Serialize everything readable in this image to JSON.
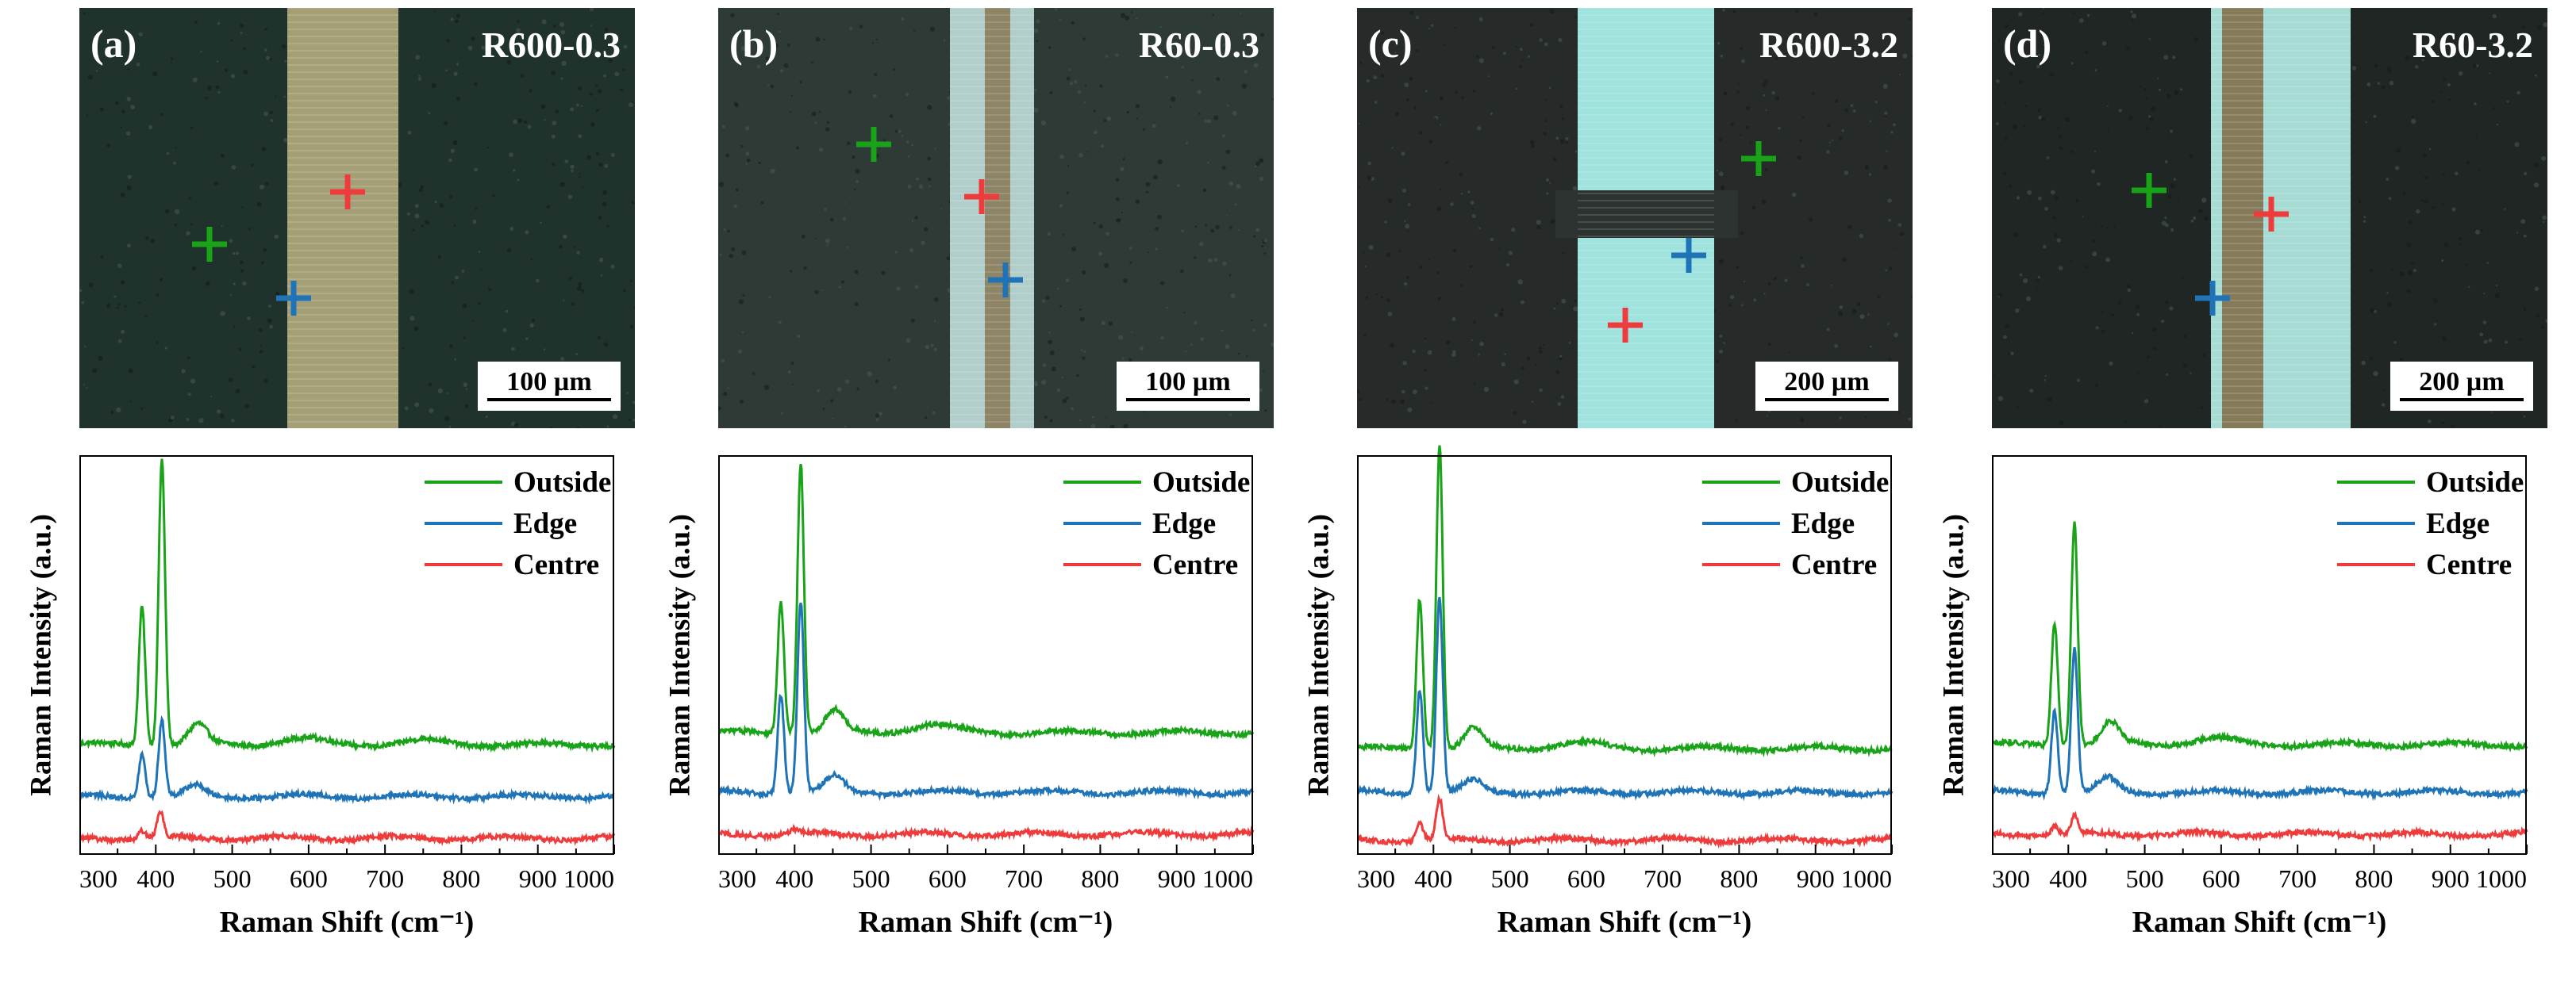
{
  "figure": {
    "panels": [
      {
        "letter": "(a)",
        "sample": "R600-0.3",
        "scale_bar": "100 µm",
        "style": "a"
      },
      {
        "letter": "(b)",
        "sample": "R60-0.3",
        "scale_bar": "100 µm",
        "style": "b"
      },
      {
        "letter": "(c)",
        "sample": "R600-3.2",
        "scale_bar": "200 µm",
        "style": "c"
      },
      {
        "letter": "(d)",
        "sample": "R60-3.2",
        "scale_bar": "200 µm",
        "style": "d"
      }
    ],
    "colors": {
      "outside": "#19a319",
      "edge": "#1f73b7",
      "centre": "#ee3b3b",
      "axis": "#000000"
    }
  },
  "chart_data": [
    {
      "type": "line",
      "panel": "(a)",
      "title": "",
      "xlabel": "Raman Shift (cm⁻¹)",
      "ylabel": "Raman Intensity (a.u.)",
      "xlim": [
        300,
        1000
      ],
      "ylim": [
        0,
        10
      ],
      "xticks": [
        300,
        400,
        500,
        600,
        700,
        800,
        900,
        1000
      ],
      "yticks": [],
      "legend": "top-right",
      "series": [
        {
          "name": "Outside",
          "color": "#19a319",
          "baseline": 2.75,
          "peaks": [
            [
              382,
              3.5
            ],
            [
              408,
              7.2
            ],
            [
              455,
              0.5
            ],
            [
              590,
              0.15
            ],
            [
              750,
              0.1
            ]
          ]
        },
        {
          "name": "Edge",
          "color": "#1f73b7",
          "baseline": 1.45,
          "peaks": [
            [
              382,
              1.1
            ],
            [
              408,
              1.9
            ],
            [
              452,
              0.25
            ]
          ]
        },
        {
          "name": "Centre",
          "color": "#ee3b3b",
          "baseline": 0.4,
          "peaks": [
            [
              382,
              0.2
            ],
            [
              406,
              0.65
            ]
          ]
        }
      ]
    },
    {
      "type": "line",
      "panel": "(b)",
      "title": "",
      "xlabel": "Raman Shift (cm⁻¹)",
      "ylabel": "Raman Intensity (a.u.)",
      "xlim": [
        300,
        1000
      ],
      "ylim": [
        0,
        10
      ],
      "xticks": [
        300,
        400,
        500,
        600,
        700,
        800,
        900,
        1000
      ],
      "yticks": [],
      "legend": "top-right",
      "series": [
        {
          "name": "Outside",
          "color": "#19a319",
          "baseline": 3.05,
          "peaks": [
            [
              382,
              3.3
            ],
            [
              408,
              6.8
            ],
            [
              452,
              0.55
            ],
            [
              580,
              0.2
            ]
          ]
        },
        {
          "name": "Edge",
          "color": "#1f73b7",
          "baseline": 1.55,
          "peaks": [
            [
              382,
              2.5
            ],
            [
              408,
              4.8
            ],
            [
              452,
              0.4
            ]
          ]
        },
        {
          "name": "Centre",
          "color": "#ee3b3b",
          "baseline": 0.5,
          "peaks": [
            [
              400,
              0.1
            ]
          ]
        }
      ]
    },
    {
      "type": "line",
      "panel": "(c)",
      "title": "",
      "xlabel": "Raman Shift (cm⁻¹)",
      "ylabel": "Raman Intensity (a.u.)",
      "xlim": [
        300,
        1000
      ],
      "ylim": [
        0,
        10
      ],
      "xticks": [
        300,
        400,
        500,
        600,
        700,
        800,
        900,
        1000
      ],
      "yticks": [],
      "legend": "top-right",
      "series": [
        {
          "name": "Outside",
          "color": "#19a319",
          "baseline": 2.65,
          "peaks": [
            [
              382,
              3.8
            ],
            [
              408,
              7.7
            ],
            [
              452,
              0.5
            ],
            [
              590,
              0.15
            ]
          ]
        },
        {
          "name": "Edge",
          "color": "#1f73b7",
          "baseline": 1.55,
          "peaks": [
            [
              382,
              2.6
            ],
            [
              408,
              4.9
            ],
            [
              452,
              0.3
            ]
          ]
        },
        {
          "name": "Centre",
          "color": "#ee3b3b",
          "baseline": 0.35,
          "peaks": [
            [
              382,
              0.45
            ],
            [
              408,
              1.0
            ]
          ]
        }
      ]
    },
    {
      "type": "line",
      "panel": "(d)",
      "title": "",
      "xlabel": "Raman Shift (cm⁻¹)",
      "ylabel": "Raman Intensity (a.u.)",
      "xlim": [
        300,
        1000
      ],
      "ylim": [
        0,
        10
      ],
      "xticks": [
        300,
        400,
        500,
        600,
        700,
        800,
        900,
        1000
      ],
      "yticks": [],
      "legend": "top-right",
      "series": [
        {
          "name": "Outside",
          "color": "#19a319",
          "baseline": 2.75,
          "peaks": [
            [
              382,
              3.1
            ],
            [
              408,
              5.6
            ],
            [
              455,
              0.55
            ],
            [
              590,
              0.15
            ]
          ]
        },
        {
          "name": "Edge",
          "color": "#1f73b7",
          "baseline": 1.55,
          "peaks": [
            [
              382,
              2.1
            ],
            [
              408,
              3.6
            ],
            [
              452,
              0.35
            ]
          ]
        },
        {
          "name": "Centre",
          "color": "#ee3b3b",
          "baseline": 0.5,
          "peaks": [
            [
              382,
              0.2
            ],
            [
              408,
              0.45
            ]
          ]
        }
      ]
    }
  ]
}
